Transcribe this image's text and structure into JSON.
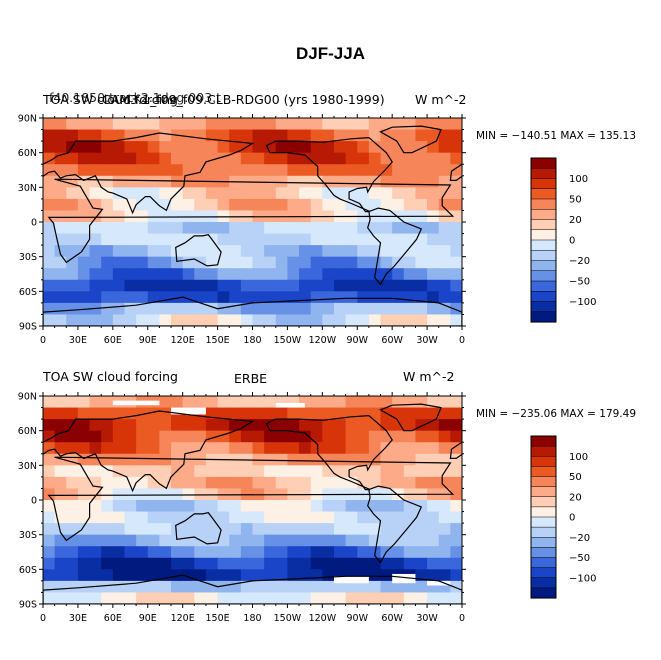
{
  "title": "DJF-JJA",
  "colorbar": {
    "levels": [
      "100",
      "50",
      "20",
      "0",
      "−20",
      "−50",
      "−100"
    ],
    "colors": [
      "#8b0000",
      "#b61a04",
      "#d8340a",
      "#ec5a23",
      "#f7855a",
      "#fdaa88",
      "#fecfb4",
      "#fdf0e4",
      "#d6e8fc",
      "#b7d2f6",
      "#90b4ee",
      "#6691e6",
      "#3b67dc",
      "#1a45c8",
      "#092ea3",
      "#011a80"
    ]
  },
  "panels": [
    {
      "title_left": "TOA SW cloud forcing",
      "title_left_overlap": "f40.1850.track2.1deg.003.t",
      "title_center": "",
      "title_center_overlap": "CAM3.1_f09_f09.CLB-RDG00 (yrs 1980-1999)",
      "title_right": "W m^-2",
      "minmax": "MIN = −140.51  MAX = 135.13"
    },
    {
      "title_left": "TOA SW cloud forcing",
      "title_center": "ERBE",
      "title_right": "W m^-2",
      "minmax": "MIN = −235.06  MAX = 179.49"
    }
  ],
  "axes": {
    "lat_labels": [
      "90N",
      "60N",
      "30N",
      "0",
      "30S",
      "60S",
      "90S"
    ],
    "lon_labels": [
      "0",
      "30E",
      "60E",
      "90E",
      "120E",
      "150E",
      "180",
      "150W",
      "120W",
      "90W",
      "60W",
      "30W",
      "0"
    ]
  },
  "chart_data": [
    {
      "type": "heatmap",
      "title": "TOA SW cloud forcing",
      "dataset": "CAM3.1_f09_f09.CLB-RDG00 (yrs 1980-1999)",
      "units": "W m^-2",
      "min": -140.51,
      "max": 135.13,
      "xlim": [
        0,
        360
      ],
      "ylim": [
        -90,
        90
      ],
      "x_ticks": [
        "0",
        "30E",
        "60E",
        "90E",
        "120E",
        "150E",
        "180",
        "150W",
        "120W",
        "90W",
        "60W",
        "30W",
        "0"
      ],
      "y_ticks": [
        "90N",
        "60N",
        "30N",
        "0",
        "30S",
        "60S",
        "90S"
      ],
      "contour_levels": [
        -100,
        -50,
        -20,
        0,
        20,
        50,
        100
      ],
      "zonal_profile": {
        "lat": [
          85,
          75,
          65,
          55,
          45,
          35,
          25,
          15,
          5,
          -5,
          -15,
          -25,
          -35,
          -45,
          -55,
          -65,
          -75,
          -85
        ],
        "value": [
          45,
          80,
          95,
          85,
          70,
          45,
          20,
          30,
          15,
          -20,
          -15,
          -30,
          -45,
          -70,
          -100,
          -95,
          -40,
          -10
        ]
      }
    },
    {
      "type": "heatmap",
      "title": "TOA SW cloud forcing",
      "dataset": "ERBE",
      "units": "W m^-2",
      "min": -235.06,
      "max": 179.49,
      "xlim": [
        0,
        360
      ],
      "ylim": [
        -90,
        90
      ],
      "x_ticks": [
        "0",
        "30E",
        "60E",
        "90E",
        "120E",
        "150E",
        "180",
        "150W",
        "120W",
        "90W",
        "60W",
        "30W",
        "0"
      ],
      "y_ticks": [
        "90N",
        "60N",
        "30N",
        "0",
        "30S",
        "60S",
        "90S"
      ],
      "contour_levels": [
        -100,
        -50,
        -20,
        0,
        20,
        50,
        100
      ],
      "zonal_profile": {
        "lat": [
          85,
          75,
          65,
          55,
          45,
          35,
          25,
          15,
          5,
          -5,
          -15,
          -25,
          -35,
          -45,
          -55,
          -65,
          -75,
          -85
        ],
        "value": [
          40,
          90,
          110,
          95,
          75,
          50,
          25,
          35,
          20,
          -15,
          -10,
          -25,
          -45,
          -75,
          -110,
          -120,
          -30,
          5
        ]
      }
    }
  ]
}
